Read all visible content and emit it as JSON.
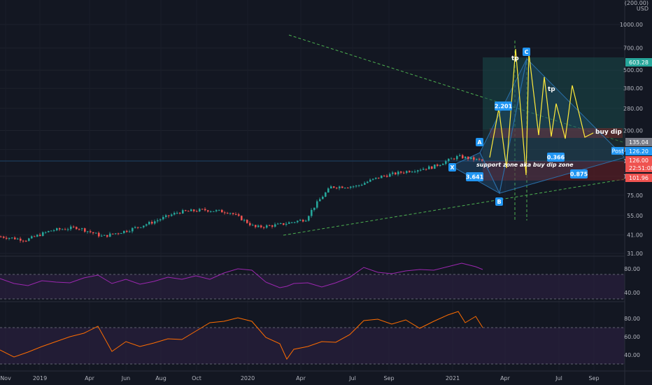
{
  "colors": {
    "background": "#131722",
    "grid": "#1e222d",
    "up": "#26a69a",
    "down": "#ef5350",
    "pattern_blue": "#2a6fa8",
    "pattern_yellow": "#ffeb3b",
    "trend_green": "#4caf50",
    "rsi_line": "#9c27b0",
    "stoch_line": "#ff6d00",
    "tp_zone": "#1a4a4a",
    "support_zone": "#6b1f24",
    "label_blue": "#2196f3"
  },
  "header": {
    "scale_top": "(200.00)",
    "currency": "USD"
  },
  "price_axis": {
    "scale": "log",
    "ticks": [
      "1000.00",
      "700.00",
      "500.00",
      "380.00",
      "280.00",
      "200.00",
      "150.00",
      "126.00",
      "100.00",
      "75.00",
      "55.00",
      "41.00",
      "31.00"
    ],
    "badges": [
      {
        "text": "603.28",
        "color": "#26a69a",
        "value": 603.28
      },
      {
        "text": "135.04",
        "color": "#787b86",
        "value": 135.04
      },
      {
        "text": "Post",
        "color": "#2196f3",
        "value": 126.2
      },
      {
        "text": "126.20",
        "color": "#2196f3",
        "value": 126.2
      },
      {
        "text": "126.00",
        "color": "#ef5350",
        "value": 117
      },
      {
        "text": "22:51:08",
        "color": "#ef5350",
        "value": 110
      },
      {
        "text": "101.96",
        "color": "#ef5350",
        "value": 101.96
      }
    ]
  },
  "time_axis": {
    "labels": [
      "Nov",
      "2019",
      "Apr",
      "Jun",
      "Aug",
      "Oct",
      "2020",
      "Apr",
      "Jul",
      "Sep",
      "2021",
      "Apr",
      "Jul",
      "Sep"
    ]
  },
  "rsi_panel": {
    "ticks": [
      "80.00",
      "40.00"
    ]
  },
  "stoch_panel": {
    "ticks": [
      "80.00",
      "60.00",
      "40.00"
    ]
  },
  "annotations": {
    "support_text": "support zone aka buy dip zone",
    "buy_dip": "buy dip",
    "tp1": "tp",
    "tp2": "tp",
    "ratio_2201": "2.201",
    "ratio_0366": "0.366",
    "ratio_3641": "3.641",
    "ratio_0875": "0.875",
    "pt_x": "X",
    "pt_a": "A",
    "pt_b": "B",
    "pt_c": "C"
  },
  "chart_data": {
    "type": "candlestick",
    "price_scale": "log",
    "y_range": [
      31,
      1000
    ],
    "price_trend": [
      {
        "x": "Nov 2018",
        "y": 40
      },
      {
        "x": "Jan 2019",
        "y": 38
      },
      {
        "x": "Apr 2019",
        "y": 44
      },
      {
        "x": "May 2019",
        "y": 46
      },
      {
        "x": "Jun 2019",
        "y": 40
      },
      {
        "x": "Aug 2019",
        "y": 44
      },
      {
        "x": "Oct 2019",
        "y": 50
      },
      {
        "x": "Dec 2019",
        "y": 58
      },
      {
        "x": "Jan 2020",
        "y": 60
      },
      {
        "x": "Feb 2020",
        "y": 58
      },
      {
        "x": "Mar 2020",
        "y": 46
      },
      {
        "x": "Apr 2020",
        "y": 48
      },
      {
        "x": "May 2020",
        "y": 52
      },
      {
        "x": "Jul 2020",
        "y": 85
      },
      {
        "x": "Sep 2020",
        "y": 86
      },
      {
        "x": "Nov 2020",
        "y": 100
      },
      {
        "x": "Dec 2020",
        "y": 108
      },
      {
        "x": "Jan 2021",
        "y": 115
      },
      {
        "x": "Feb 2021",
        "y": 135
      },
      {
        "x": "Mar 2021",
        "y": 126
      }
    ],
    "projection_points": [
      {
        "label": "X",
        "x": "Jan 2021",
        "y": 115
      },
      {
        "label": "A",
        "x": "Feb 2021",
        "y": 135
      },
      {
        "label": "B",
        "x": "Mar 2021",
        "y": 78
      },
      {
        "label": "C",
        "x": "Apr 2021",
        "y": 600
      }
    ],
    "current_price": 126.2,
    "rsi_ticks": [
      80,
      40
    ],
    "stoch_ticks": [
      80,
      60,
      40
    ]
  }
}
